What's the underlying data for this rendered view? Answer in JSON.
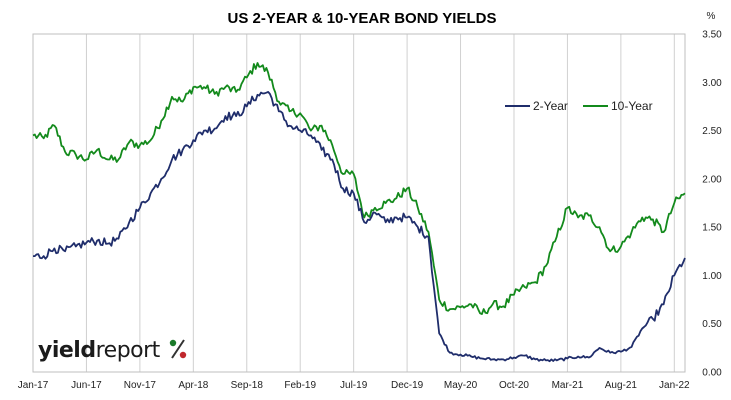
{
  "chart_data": {
    "type": "line",
    "title": "US 2-YEAR & 10-YEAR BOND YIELDS",
    "y_unit": "%",
    "ylim": [
      0,
      3.5
    ],
    "y_ticks": [
      "0.00",
      "0.50",
      "1.00",
      "1.50",
      "2.00",
      "2.50",
      "3.00",
      "3.50"
    ],
    "y_axis_side": "right",
    "x_ticks": [
      "Jan-17",
      "Jun-17",
      "Nov-17",
      "Apr-18",
      "Sep-18",
      "Feb-19",
      "Jul-19",
      "Dec-19",
      "May-20",
      "Oct-20",
      "Mar-21",
      "Aug-21",
      "Jan-22"
    ],
    "x_range": [
      "2017-01",
      "2022-02"
    ],
    "grid": "vertical",
    "legend_position": "top-right",
    "series": [
      {
        "name": "2-Year",
        "color": "#1f2d6b",
        "points": [
          [
            "2017-01",
            1.2
          ],
          [
            "2017-02",
            1.2
          ],
          [
            "2017-03",
            1.28
          ],
          [
            "2017-04",
            1.25
          ],
          [
            "2017-05",
            1.3
          ],
          [
            "2017-06",
            1.34
          ],
          [
            "2017-07",
            1.36
          ],
          [
            "2017-08",
            1.33
          ],
          [
            "2017-09",
            1.38
          ],
          [
            "2017-10",
            1.55
          ],
          [
            "2017-11",
            1.7
          ],
          [
            "2017-12",
            1.85
          ],
          [
            "2018-01",
            2.0
          ],
          [
            "2018-02",
            2.2
          ],
          [
            "2018-03",
            2.3
          ],
          [
            "2018-04",
            2.4
          ],
          [
            "2018-05",
            2.5
          ],
          [
            "2018-06",
            2.52
          ],
          [
            "2018-07",
            2.65
          ],
          [
            "2018-08",
            2.65
          ],
          [
            "2018-09",
            2.75
          ],
          [
            "2018-10",
            2.87
          ],
          [
            "2018-11",
            2.9
          ],
          [
            "2018-12",
            2.7
          ],
          [
            "2019-01",
            2.55
          ],
          [
            "2019-02",
            2.5
          ],
          [
            "2019-03",
            2.45
          ],
          [
            "2019-04",
            2.3
          ],
          [
            "2019-05",
            2.2
          ],
          [
            "2019-06",
            1.9
          ],
          [
            "2019-07",
            1.85
          ],
          [
            "2019-08",
            1.55
          ],
          [
            "2019-09",
            1.65
          ],
          [
            "2019-10",
            1.55
          ],
          [
            "2019-11",
            1.6
          ],
          [
            "2019-12",
            1.6
          ],
          [
            "2020-01",
            1.5
          ],
          [
            "2020-02",
            1.4
          ],
          [
            "2020-03",
            0.4
          ],
          [
            "2020-04",
            0.2
          ],
          [
            "2020-05",
            0.18
          ],
          [
            "2020-06",
            0.16
          ],
          [
            "2020-07",
            0.14
          ],
          [
            "2020-08",
            0.13
          ],
          [
            "2020-09",
            0.13
          ],
          [
            "2020-10",
            0.15
          ],
          [
            "2020-11",
            0.17
          ],
          [
            "2020-12",
            0.13
          ],
          [
            "2021-01",
            0.12
          ],
          [
            "2021-02",
            0.12
          ],
          [
            "2021-03",
            0.14
          ],
          [
            "2021-04",
            0.16
          ],
          [
            "2021-05",
            0.15
          ],
          [
            "2021-06",
            0.25
          ],
          [
            "2021-07",
            0.2
          ],
          [
            "2021-08",
            0.21
          ],
          [
            "2021-09",
            0.26
          ],
          [
            "2021-10",
            0.45
          ],
          [
            "2021-11",
            0.55
          ],
          [
            "2021-12",
            0.7
          ],
          [
            "2022-01",
            1.0
          ],
          [
            "2022-02",
            1.18
          ]
        ]
      },
      {
        "name": "10-Year",
        "color": "#138a1c",
        "points": [
          [
            "2017-01",
            2.45
          ],
          [
            "2017-02",
            2.42
          ],
          [
            "2017-03",
            2.55
          ],
          [
            "2017-04",
            2.28
          ],
          [
            "2017-05",
            2.25
          ],
          [
            "2017-06",
            2.2
          ],
          [
            "2017-07",
            2.3
          ],
          [
            "2017-08",
            2.2
          ],
          [
            "2017-09",
            2.2
          ],
          [
            "2017-10",
            2.38
          ],
          [
            "2017-11",
            2.35
          ],
          [
            "2017-12",
            2.4
          ],
          [
            "2018-01",
            2.6
          ],
          [
            "2018-02",
            2.85
          ],
          [
            "2018-03",
            2.8
          ],
          [
            "2018-04",
            2.95
          ],
          [
            "2018-05",
            2.95
          ],
          [
            "2018-06",
            2.88
          ],
          [
            "2018-07",
            2.95
          ],
          [
            "2018-08",
            2.9
          ],
          [
            "2018-09",
            3.05
          ],
          [
            "2018-10",
            3.2
          ],
          [
            "2018-11",
            3.1
          ],
          [
            "2018-12",
            2.8
          ],
          [
            "2019-01",
            2.7
          ],
          [
            "2019-02",
            2.68
          ],
          [
            "2019-03",
            2.5
          ],
          [
            "2019-04",
            2.55
          ],
          [
            "2019-05",
            2.35
          ],
          [
            "2019-06",
            2.05
          ],
          [
            "2019-07",
            2.05
          ],
          [
            "2019-08",
            1.6
          ],
          [
            "2019-09",
            1.7
          ],
          [
            "2019-10",
            1.75
          ],
          [
            "2019-11",
            1.8
          ],
          [
            "2019-12",
            1.9
          ],
          [
            "2020-01",
            1.7
          ],
          [
            "2020-02",
            1.45
          ],
          [
            "2020-03",
            0.75
          ],
          [
            "2020-04",
            0.65
          ],
          [
            "2020-05",
            0.67
          ],
          [
            "2020-06",
            0.7
          ],
          [
            "2020-07",
            0.6
          ],
          [
            "2020-08",
            0.7
          ],
          [
            "2020-09",
            0.68
          ],
          [
            "2020-10",
            0.8
          ],
          [
            "2020-11",
            0.88
          ],
          [
            "2020-12",
            0.93
          ],
          [
            "2021-01",
            1.1
          ],
          [
            "2021-02",
            1.4
          ],
          [
            "2021-03",
            1.7
          ],
          [
            "2021-04",
            1.6
          ],
          [
            "2021-05",
            1.62
          ],
          [
            "2021-06",
            1.5
          ],
          [
            "2021-07",
            1.25
          ],
          [
            "2021-08",
            1.3
          ],
          [
            "2021-09",
            1.45
          ],
          [
            "2021-10",
            1.6
          ],
          [
            "2021-11",
            1.58
          ],
          [
            "2021-12",
            1.45
          ],
          [
            "2022-01",
            1.75
          ],
          [
            "2022-02",
            1.85
          ]
        ]
      }
    ]
  },
  "brand": {
    "logo_text_bold": "yield",
    "logo_text_regular": "report",
    "logo_symbol": "%",
    "logo_colors": {
      "text": "#1b1b1b",
      "pct_top": "#1a7a2a",
      "pct_bottom": "#c0272d"
    }
  }
}
